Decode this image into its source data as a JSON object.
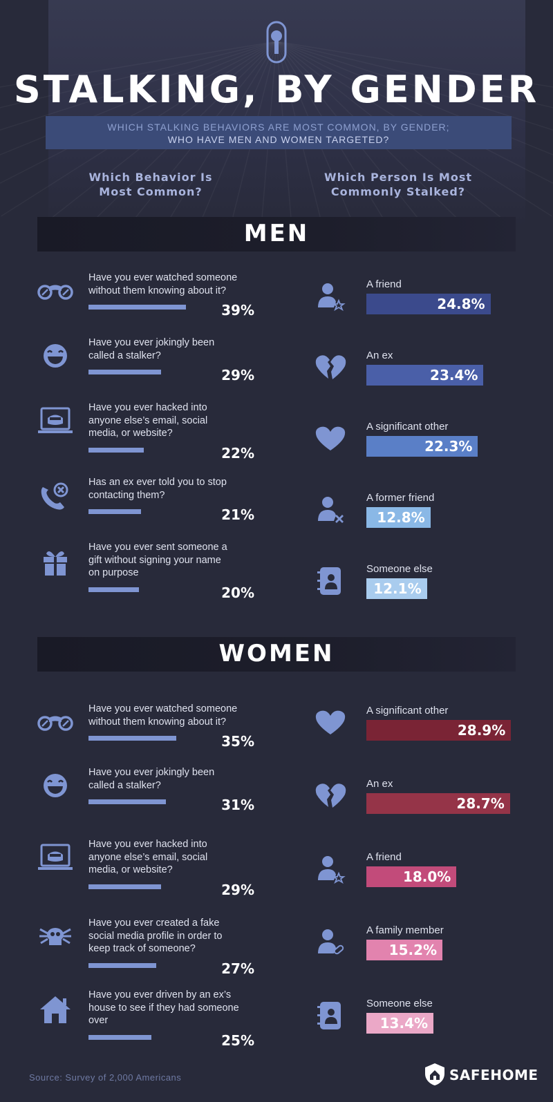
{
  "title": "STALKING, BY GENDER",
  "subtitle": [
    "WHICH STALKING BEHAVIORS ARE MOST COMMON, BY GENDER;",
    "WHO HAVE MEN AND WOMEN TARGETED?"
  ],
  "column_headers": {
    "left": [
      "Which Behavior Is",
      "Most Common?"
    ],
    "right": [
      "Which Person Is Most",
      "Commonly Stalked?"
    ]
  },
  "colors": {
    "background": "#282a3a",
    "icon": "#7f95d2",
    "behavior_bar": "#7f95d2",
    "men_bars": [
      "#3b4a8c",
      "#4a5fa8",
      "#5a7fc7",
      "#8ab8e6",
      "#a9ccee"
    ],
    "women_bars": [
      "#7a2435",
      "#953448",
      "#c24b7a",
      "#e283ae",
      "#eba8c7"
    ]
  },
  "chart_data": [
    {
      "type": "bar",
      "section": "MEN",
      "panel": "Which Behavior Is Most Common?",
      "categories": [
        "Have you ever watched someone without them knowing about it?",
        "Have you ever jokingly been called a stalker?",
        "Have you ever hacked into anyone else’s email, social media, or website?",
        "Has an ex ever told you to stop contacting them?",
        "Have you ever sent someone a gift without signing your name on purpose"
      ],
      "lines": [
        [
          "Have you ever watched someone",
          "without them knowing about it?"
        ],
        [
          "Have you ever jokingly been",
          "called a stalker?"
        ],
        [
          "Have you ever hacked into",
          "anyone else’s email, social",
          "media, or website?"
        ],
        [
          "Has an ex ever told you to stop",
          "contacting them?"
        ],
        [
          "Have you ever sent someone a",
          "gift without signing your name",
          "on purpose"
        ]
      ],
      "icons": [
        "binoculars-icon",
        "laughing-face-icon",
        "hacker-laptop-icon",
        "phone-blocked-icon",
        "gift-icon"
      ],
      "values": [
        39,
        29,
        22,
        21,
        20
      ],
      "labels": [
        "39%",
        "29%",
        "22%",
        "21%",
        "20%"
      ],
      "unit": "%"
    },
    {
      "type": "bar",
      "section": "MEN",
      "panel": "Which Person Is Most Commonly Stalked?",
      "categories": [
        "A friend",
        "An ex",
        "A significant other",
        "A former friend",
        "Someone else"
      ],
      "icons": [
        "person-star-icon",
        "broken-heart-icon",
        "heart-icon",
        "person-x-icon",
        "contact-book-icon"
      ],
      "values": [
        24.8,
        23.4,
        22.3,
        12.8,
        12.1
      ],
      "labels": [
        "24.8%",
        "23.4%",
        "22.3%",
        "12.8%",
        "12.1%"
      ],
      "unit": "%"
    },
    {
      "type": "bar",
      "section": "WOMEN",
      "panel": "Which Behavior Is Most Common?",
      "categories": [
        "Have you ever watched someone without them knowing about it?",
        "Have you ever jokingly been called a stalker?",
        "Have you ever hacked into anyone else’s email, social media, or website?",
        "Have you ever created a fake social media profile in order to keep track of someone?",
        "Have you ever driven by an ex’s house to see if they had someone over"
      ],
      "lines": [
        [
          "Have you ever watched someone",
          "without them knowing about it?"
        ],
        [
          "Have you ever jokingly been",
          "called a stalker?"
        ],
        [
          "Have you ever hacked into",
          "anyone else’s email, social",
          "media, or website?"
        ],
        [
          "Have you ever created a fake",
          "social media profile in order to",
          "keep track of someone?"
        ],
        [
          "Have you ever driven by an ex’s",
          "house to see if they had someone",
          "over"
        ]
      ],
      "icons": [
        "binoculars-icon",
        "laughing-face-icon",
        "hacker-laptop-icon",
        "spider-icon",
        "house-icon"
      ],
      "values": [
        35,
        31,
        29,
        27,
        25
      ],
      "labels": [
        "35%",
        "31%",
        "29%",
        "27%",
        "25%"
      ],
      "unit": "%"
    },
    {
      "type": "bar",
      "section": "WOMEN",
      "panel": "Which Person Is Most Commonly Stalked?",
      "categories": [
        "A significant other",
        "An ex",
        "A friend",
        "A family member",
        "Someone else"
      ],
      "icons": [
        "heart-icon",
        "broken-heart-icon",
        "person-star-icon",
        "person-bandage-icon",
        "contact-book-icon"
      ],
      "values": [
        28.9,
        28.7,
        18.0,
        15.2,
        13.4
      ],
      "labels": [
        "28.9%",
        "28.7%",
        "18.0%",
        "15.2%",
        "13.4%"
      ],
      "unit": "%"
    }
  ],
  "source": "Source: Survey of 2,000 Americans",
  "brand": {
    "name": "SAFEHOME",
    "icon": "shield-house-icon"
  }
}
